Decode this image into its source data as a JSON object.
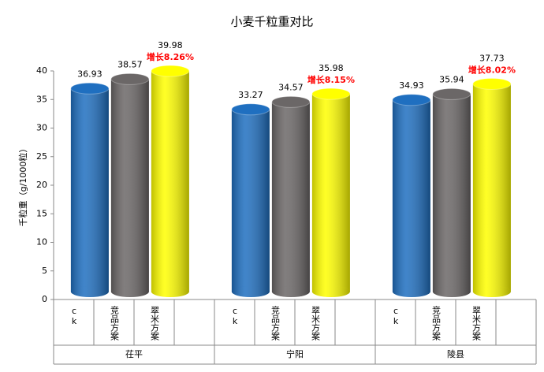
{
  "chart_data": {
    "type": "bar",
    "title": "小麦千粒重对比",
    "y_label": "千粒重（g/1000粒）",
    "categories": [
      "茌平",
      "宁阳",
      "陵县"
    ],
    "series": [
      {
        "name": "ck",
        "color": "#1f6fc0",
        "values": [
          36.93,
          33.27,
          34.93
        ]
      },
      {
        "name": "竞品方案",
        "color": "#6b6767",
        "values": [
          38.57,
          34.57,
          35.94
        ]
      },
      {
        "name": "翠米方案",
        "color": "#ffff00",
        "values": [
          39.98,
          35.98,
          37.73
        ]
      }
    ],
    "growth_labels": [
      "增长8.26%",
      "增长8.15%",
      "增长8.02%"
    ],
    "ylim": [
      0,
      40
    ],
    "yticks": [
      0,
      5,
      10,
      15,
      20,
      25,
      30,
      35,
      40
    ]
  }
}
